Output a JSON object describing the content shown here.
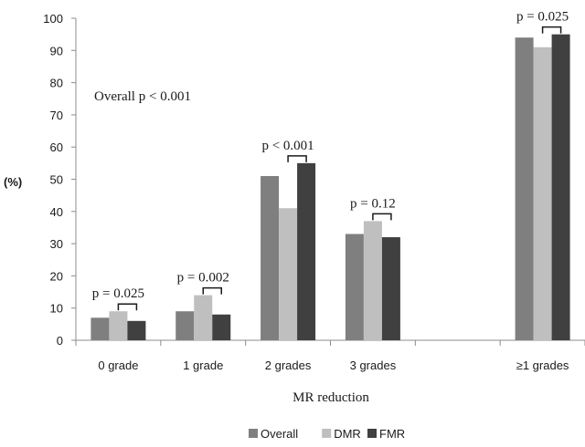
{
  "chart_data": {
    "type": "bar",
    "title": "",
    "xlabel": "MR reduction",
    "ylabel": "(%)",
    "ylim": [
      0,
      100
    ],
    "yticks": [
      0,
      10,
      20,
      30,
      40,
      50,
      60,
      70,
      80,
      90,
      100
    ],
    "categories": [
      "0 grade",
      "1 grade",
      "2 grades",
      "3 grades",
      "",
      "≥1 grades"
    ],
    "series": [
      {
        "name": "Overall",
        "color": "#7f7f7f",
        "values": [
          7,
          9,
          51,
          33,
          null,
          94
        ]
      },
      {
        "name": "DMR",
        "color": "#bfbfbf",
        "values": [
          9,
          14,
          41,
          37,
          null,
          91
        ]
      },
      {
        "name": "FMR",
        "color": "#404040",
        "values": [
          6,
          8,
          55,
          32,
          null,
          95
        ]
      }
    ],
    "annotations": [
      {
        "text": "p = 0.025",
        "category_index": 0
      },
      {
        "text": "p = 0.002",
        "category_index": 1
      },
      {
        "text": "p < 0.001",
        "category_index": 2
      },
      {
        "text": "p = 0.12",
        "category_index": 3
      },
      {
        "text": "p = 0.025",
        "category_index": 5
      }
    ],
    "overall_note": "Overall p < 0.001",
    "legend_position": "bottom",
    "grid": false
  }
}
